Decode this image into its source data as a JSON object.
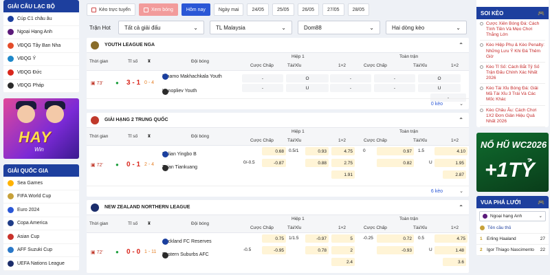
{
  "left": {
    "clubs_title": "GIẢI CÂU LẠC BỘ",
    "clubs": [
      {
        "label": "Cúp C1 châu âu",
        "color": "#1b3f9e"
      },
      {
        "label": "Ngoại Hạng Anh",
        "color": "#5b1a7a"
      },
      {
        "label": "VĐQG Tây Ban Nha",
        "color": "#e44c2a"
      },
      {
        "label": "VĐQG Ý",
        "color": "#1e88c9"
      },
      {
        "label": "VĐQG Đức",
        "color": "#d9261c"
      },
      {
        "label": "VĐQG Pháp",
        "color": "#2b2b2b"
      }
    ],
    "banner_text": "HAY",
    "banner_sub": "Win",
    "nations_title": "GIẢI QUỐC GIA",
    "nations": [
      {
        "label": "Sea Games",
        "color": "#ffb200"
      },
      {
        "label": "FIFA World Cup",
        "color": "#c7a13a"
      },
      {
        "label": "Euro 2024",
        "color": "#2a57d6"
      },
      {
        "label": "Copa America",
        "color": "#1f3c88"
      },
      {
        "label": "Asian Cup",
        "color": "#c9322b"
      },
      {
        "label": "AFF Suzuki Cup",
        "color": "#2a78c8"
      },
      {
        "label": "UEFA Nations League",
        "color": "#1b2d6b"
      }
    ]
  },
  "filters": {
    "live": "Kèo trực tuyến",
    "football": "Xem bóng",
    "today": "Hôm nay",
    "tomorrow": "Ngày mai",
    "dates": [
      "24/05",
      "25/05",
      "26/05",
      "27/05",
      "28/05"
    ]
  },
  "row2": {
    "hot": "Trận Hot",
    "all": "Tất cả giải đấu",
    "country": "TL Malaysia",
    "bookie": "Dom88",
    "lines": "Hai dòng kèo"
  },
  "headers": {
    "time": "Thời gian",
    "score": "Tỉ số",
    "team": "Đội bóng",
    "half": "Hiệp 1",
    "full": "Toàn trận",
    "handicap": "Cược Chấp",
    "ou": "Tài/Xỉu",
    "x12": "1×2"
  },
  "leagues": [
    {
      "name": "YOUTH LEAGUE NGA",
      "logo": "#8a6d2a",
      "minute": "73'",
      "score": "3 - 1",
      "corner": "0 - 4",
      "home": "Dinamo Makhachkala Youth",
      "away": "Konopliev Youth",
      "h_hc": [
        "-",
        "-"
      ],
      "h_ou": [
        "O",
        "U"
      ],
      "h_x": [
        "-",
        "-"
      ],
      "f_hc": [
        "-",
        "-"
      ],
      "f_ou": [
        "O",
        "U"
      ],
      "f_x": [
        "-",
        "-"
      ],
      "odds_count": "0 kèo"
    },
    {
      "name": "GIẢI HẠNG 2 TRUNG QUỐC",
      "logo": "#c0392b",
      "minute": "72'",
      "score": "0 - 1",
      "corner": "2 - 4",
      "home": "Dalian Yingbo B",
      "away": "Taian Tiankuang",
      "h_line": [
        "",
        "0/-0.5"
      ],
      "h_hc": [
        "0.68",
        "-0.87"
      ],
      "h_ouline": [
        "0.5/1",
        "U"
      ],
      "h_ou": [
        "0.93",
        "0.88"
      ],
      "h_x": [
        "4.75",
        "2.75",
        "1.91"
      ],
      "f_line": [
        "0",
        ""
      ],
      "f_hc": [
        "0.97",
        "0.82"
      ],
      "f_ouline": [
        "1.5",
        "U"
      ],
      "f_ou": [
        "-0.87",
        "0.67"
      ],
      "f_x": [
        "4.10",
        "1.95",
        "2.87"
      ],
      "odds_count": "6 kèo"
    },
    {
      "name": "NEW ZEALAND NORTHERN LEAGUE",
      "logo": "#1b2d6b",
      "minute": "72'",
      "score": "0 - 0",
      "corner": "1 - 11",
      "home": "Auckland FC Reserves",
      "away": "Eastern Suburbs AFC",
      "h_line": [
        "",
        "-0.5"
      ],
      "h_hc": [
        "0.75",
        "-0.95"
      ],
      "h_ouline": [
        "1/1.5",
        "U"
      ],
      "h_ou": [
        "-0.97",
        "0.78"
      ],
      "h_x": [
        "5",
        "2",
        "2.4"
      ],
      "f_line": [
        "-0.25",
        ""
      ],
      "f_hc": [
        "0.72",
        "-0.93"
      ],
      "f_ouline": [
        "0.5",
        "U"
      ],
      "f_ou": [
        "0.76",
        "-0.98"
      ],
      "f_x": [
        "4.75",
        "1.48",
        "3.6"
      ]
    }
  ],
  "right": {
    "tips_title": "SOI KÈO",
    "tips": [
      "Cược Xiên Bóng Đá: Cách Tính Tiền Và Mẹo Chơi Thắng Lớn",
      "Kèo Hiệp Phụ & Kèo Penalty: Những Lưu Ý Khi Đá Thêm Giờ",
      "Kèo Tỉ Số: Cách Bắt Tỷ Số Trận Đấu Chính Xác Nhất 2026",
      "Kèo Tài Xỉu Bóng Đá: Giải Mã Tài Xỉu 3 Trái Và Các Mốc Khác",
      "Kèo Châu Âu: Cách Chơi 1X2 Đơn Giản Hiệu Quả Nhất 2026"
    ],
    "banner_line1": "NỔ HŨ WC2026",
    "banner_line2": "+1TỶ",
    "scorers_title": "VUA PHÁ LƯỚI",
    "league_select": "Ngoại hạng Anh",
    "player_col": "Tên cầu thủ",
    "scorers": [
      {
        "rank": "1",
        "name": "Erling Haaland",
        "goals": "27"
      },
      {
        "rank": "2",
        "name": "Igor Thiago Nascimento",
        "goals": "22"
      }
    ]
  }
}
